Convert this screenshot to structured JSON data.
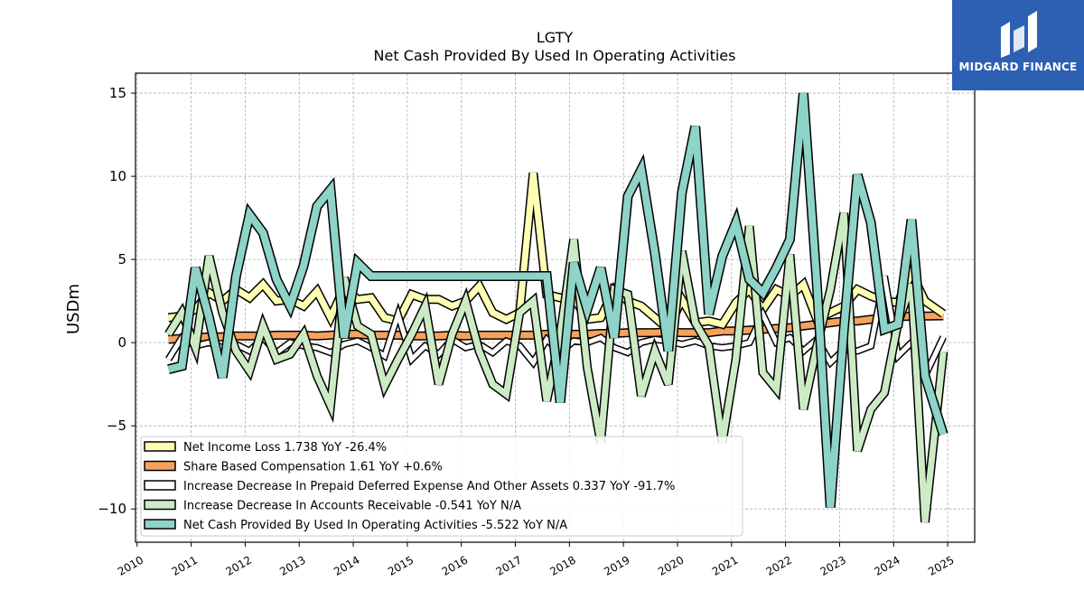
{
  "logo": {
    "text": "MIDGARD FINANCE"
  },
  "chart_data": {
    "type": "line",
    "title": "LGTY",
    "subtitle": "Net Cash Provided By Used In Operating Activities",
    "ylabel": "USDm",
    "xlabel": "",
    "xlim": [
      2009.97,
      2025.5
    ],
    "ylim": [
      -12,
      16.2
    ],
    "yticks": [
      15,
      10,
      5,
      0,
      -5,
      -10
    ],
    "ytick_labels": [
      "15",
      "10",
      "5",
      "0",
      "−5",
      "−10"
    ],
    "xticks": [
      2010,
      2011,
      2012,
      2013,
      2014,
      2015,
      2016,
      2017,
      2018,
      2019,
      2020,
      2021,
      2022,
      2023,
      2024,
      2025
    ],
    "xtick_labels": [
      "2010",
      "2011",
      "2012",
      "2013",
      "2014",
      "2015",
      "2016",
      "2017",
      "2018",
      "2019",
      "2020",
      "2021",
      "2022",
      "2023",
      "2024",
      "2025"
    ],
    "grid": true,
    "legend_position": "lower-left",
    "series": [
      {
        "name": "Share Based Compensation",
        "legend": "Share Based Compensation  1.61 YoY +0.6%",
        "color": "#f5a25d",
        "width": 7,
        "x": [
          2010.58,
          2010.83,
          2011.08,
          2011.33,
          2011.58,
          2011.83,
          2012.08,
          2012.33,
          2012.58,
          2012.83,
          2013.08,
          2013.33,
          2013.58,
          2013.83,
          2014.08,
          2014.33,
          2014.58,
          2014.83,
          2015.08,
          2015.33,
          2015.58,
          2015.83,
          2016.08,
          2016.33,
          2016.58,
          2016.83,
          2017.08,
          2017.33,
          2017.58,
          2017.83,
          2018.08,
          2018.33,
          2018.58,
          2018.83,
          2019.08,
          2019.33,
          2019.58,
          2019.83,
          2020.08,
          2020.33,
          2020.58,
          2020.83,
          2021.08,
          2021.33,
          2021.58,
          2021.83,
          2022.08,
          2022.33,
          2022.58,
          2022.83,
          2023.08,
          2023.33,
          2023.58,
          2023.83,
          2024.08,
          2024.33,
          2024.58,
          2024.92
        ],
        "values": [
          0.2,
          0.25,
          0.3,
          0.35,
          0.35,
          0.4,
          0.4,
          0.4,
          0.45,
          0.45,
          0.45,
          0.4,
          0.45,
          0.5,
          0.5,
          0.45,
          0.45,
          0.45,
          0.4,
          0.4,
          0.4,
          0.45,
          0.4,
          0.45,
          0.45,
          0.45,
          0.45,
          0.45,
          0.5,
          0.5,
          0.5,
          0.5,
          0.55,
          0.55,
          0.6,
          0.6,
          0.6,
          0.65,
          0.6,
          0.6,
          0.6,
          0.7,
          0.7,
          0.75,
          0.8,
          0.85,
          0.9,
          1.0,
          1.1,
          1.2,
          1.3,
          1.3,
          1.4,
          1.5,
          1.55,
          1.6,
          1.6,
          1.61
        ]
      },
      {
        "name": "Net Income Loss",
        "legend": "Net Income Loss  1.738 YoY -26.4%",
        "color": "#ffffb3",
        "width": 7,
        "x": [
          2010.58,
          2010.83,
          2011.08,
          2011.33,
          2011.58,
          2011.83,
          2012.08,
          2012.33,
          2012.58,
          2012.83,
          2013.08,
          2013.33,
          2013.58,
          2013.83,
          2014.08,
          2014.33,
          2014.58,
          2014.83,
          2015.08,
          2015.33,
          2015.58,
          2015.83,
          2016.08,
          2016.33,
          2016.58,
          2016.83,
          2017.08,
          2017.33,
          2017.58,
          2017.83,
          2018.08,
          2018.33,
          2018.58,
          2018.83,
          2019.08,
          2019.33,
          2019.58,
          2019.83,
          2020.08,
          2020.33,
          2020.58,
          2020.83,
          2021.08,
          2021.33,
          2021.58,
          2021.83,
          2022.08,
          2022.33,
          2022.58,
          2022.83,
          2023.08,
          2023.33,
          2023.58,
          2023.83,
          2024.08,
          2024.33,
          2024.58,
          2024.92
        ],
        "values": [
          1.5,
          1.6,
          2.0,
          3.0,
          2.5,
          3.2,
          2.7,
          3.5,
          2.5,
          2.6,
          2.2,
          3.1,
          1.5,
          3.3,
          2.6,
          2.7,
          1.5,
          1.3,
          2.9,
          2.6,
          2.6,
          2.2,
          2.5,
          3.4,
          1.8,
          1.4,
          1.8,
          10.2,
          2.9,
          2.7,
          2.7,
          1.4,
          1.5,
          3.2,
          2.5,
          2.2,
          1.5,
          0.8,
          2.6,
          1.2,
          1.3,
          1.1,
          2.4,
          3.2,
          2.0,
          3.2,
          2.8,
          3.5,
          1.4,
          1.8,
          2.2,
          3.2,
          2.8,
          2.5,
          2.4,
          4.2,
          2.5,
          1.738
        ]
      },
      {
        "name": "Increase Decrease In Prepaid Deferred Expense And Other Assets",
        "legend": "Increase Decrease In Prepaid Deferred Expense And Other Assets  0.337 YoY -91.7%",
        "color": "#ffffff",
        "width": 5,
        "x": [
          2010.58,
          2010.83,
          2011.08,
          2011.33,
          2011.58,
          2011.83,
          2012.08,
          2012.33,
          2012.58,
          2012.83,
          2013.08,
          2013.33,
          2013.58,
          2013.83,
          2014.08,
          2014.33,
          2014.58,
          2014.83,
          2015.08,
          2015.33,
          2015.58,
          2015.83,
          2016.08,
          2016.33,
          2016.58,
          2016.83,
          2017.08,
          2017.33,
          2017.58,
          2017.83,
          2018.08,
          2018.33,
          2018.58,
          2018.83,
          2019.08,
          2019.33,
          2019.58,
          2019.83,
          2020.08,
          2020.33,
          2020.58,
          2020.83,
          2021.08,
          2021.33,
          2021.58,
          2021.83,
          2022.08,
          2022.33,
          2022.58,
          2022.83,
          2023.08,
          2023.33,
          2023.58,
          2023.83,
          2024.08,
          2024.33,
          2024.58,
          2024.92
        ],
        "values": [
          -1.0,
          0.3,
          -0.2,
          0.0,
          -0.3,
          -0.1,
          -0.5,
          0.3,
          -0.6,
          0.0,
          -0.2,
          -0.3,
          -0.6,
          -0.1,
          0.1,
          -0.3,
          -0.8,
          1.7,
          -1.0,
          -0.2,
          -0.7,
          0.2,
          -0.3,
          -0.1,
          -0.6,
          0.1,
          -0.2,
          -1.2,
          0.2,
          -0.6,
          0.1,
          0.0,
          0.3,
          -0.3,
          -0.6,
          0.0,
          0.2,
          0.1,
          -0.1,
          0.1,
          -0.2,
          -0.3,
          -0.2,
          0.0,
          1.7,
          0.0,
          0.3,
          -0.5,
          0.2,
          -1.2,
          -0.4,
          -0.5,
          -0.2,
          4.0,
          -0.8,
          0.0,
          -2.0,
          0.337
        ]
      },
      {
        "name": "Increase Decrease In Accounts Receivable",
        "legend": "Increase Decrease In Accounts Receivable  -0.541 YoY N/A",
        "color": "#ccebc5",
        "width": 7,
        "x": [
          2010.58,
          2010.83,
          2011.08,
          2011.33,
          2011.58,
          2011.83,
          2012.08,
          2012.33,
          2012.58,
          2012.83,
          2013.08,
          2013.33,
          2013.58,
          2013.83,
          2014.08,
          2014.33,
          2014.58,
          2014.83,
          2015.08,
          2015.33,
          2015.58,
          2015.83,
          2016.08,
          2016.33,
          2016.58,
          2016.83,
          2017.08,
          2017.33,
          2017.58,
          2017.83,
          2018.08,
          2018.33,
          2018.58,
          2018.83,
          2019.08,
          2019.33,
          2019.58,
          2019.83,
          2020.08,
          2020.33,
          2020.58,
          2020.83,
          2021.08,
          2021.33,
          2021.58,
          2021.83,
          2022.08,
          2022.33,
          2022.58,
          2022.83,
          2023.08,
          2023.33,
          2023.58,
          2023.83,
          2024.08,
          2024.33,
          2024.58,
          2024.92
        ],
        "values": [
          0.5,
          1.8,
          -0.3,
          5.2,
          1.8,
          -0.5,
          -1.7,
          1.0,
          -1.0,
          -0.7,
          0.5,
          -2.0,
          -3.8,
          3.9,
          1.0,
          0.5,
          -2.6,
          -1.0,
          0.5,
          2.2,
          -2.5,
          0.5,
          2.5,
          -0.5,
          -2.5,
          -3.1,
          1.8,
          2.5,
          -3.5,
          0.5,
          6.2,
          -1.5,
          -6.0,
          3.2,
          2.9,
          -3.2,
          -0.5,
          -2.5,
          5.5,
          1.2,
          -0.2,
          -6.0,
          -1.0,
          7.0,
          -1.8,
          -2.8,
          5.3,
          -4.0,
          -0.2,
          3.2,
          7.8,
          -6.5,
          -4.0,
          -3.0,
          1.2,
          3.5,
          -10.8,
          -0.541
        ]
      },
      {
        "name": "Net Cash Provided By Used In Operating Activities",
        "legend": "Net Cash Provided By Used In Operating Activities  -5.522 YoY N/A",
        "color": "#8dd3c7",
        "width": 8,
        "x": [
          2010.58,
          2010.83,
          2011.08,
          2011.33,
          2011.58,
          2011.83,
          2012.08,
          2012.33,
          2012.58,
          2012.83,
          2013.08,
          2013.33,
          2013.58,
          2013.83,
          2014.08,
          2014.33,
          2017.58,
          2017.83,
          2018.08,
          2018.33,
          2018.58,
          2018.83,
          2019.08,
          2019.33,
          2019.58,
          2019.83,
          2020.08,
          2020.33,
          2020.58,
          2020.83,
          2021.08,
          2021.33,
          2021.58,
          2021.83,
          2022.08,
          2022.33,
          2022.58,
          2022.83,
          2023.08,
          2023.33,
          2023.58,
          2023.83,
          2024.08,
          2024.33,
          2024.58,
          2024.92
        ],
        "values": [
          -1.6,
          -1.4,
          4.5,
          1.5,
          -2.1,
          4.0,
          7.7,
          6.6,
          3.8,
          2.2,
          4.6,
          8.2,
          9.2,
          0.3,
          4.8,
          4.0,
          4.0,
          -3.6,
          4.8,
          2.0,
          4.5,
          0.3,
          8.8,
          10.4,
          5.4,
          -0.5,
          9.0,
          13.0,
          1.7,
          5.2,
          7.2,
          3.8,
          3.0,
          4.5,
          6.2,
          15.0,
          3.5,
          -9.9,
          0.8,
          10.1,
          7.2,
          0.8,
          1.1,
          7.4,
          -2.0,
          -5.522
        ]
      }
    ]
  }
}
